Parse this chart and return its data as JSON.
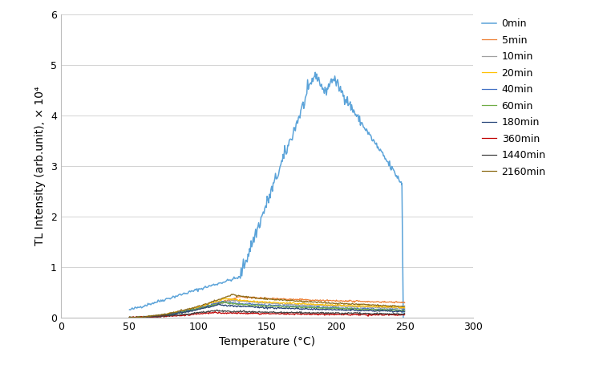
{
  "title": "",
  "xlabel": "Temperature (°C)",
  "ylabel": "TL Intensity (arb.unit), × 10⁴",
  "xlim": [
    0,
    300
  ],
  "ylim": [
    0,
    6
  ],
  "xticks": [
    0,
    50,
    100,
    150,
    200,
    250,
    300
  ],
  "yticks": [
    0,
    1,
    2,
    3,
    4,
    5,
    6
  ],
  "series_0min": {
    "label": "0min",
    "color": "#5BA3D9",
    "linewidth": 1.1
  },
  "minor_series": [
    {
      "label": "5min",
      "color": "#ED7D31",
      "peak_temp": 130,
      "peak_val": 0.42,
      "end_val": 0.3,
      "linewidth": 0.9
    },
    {
      "label": "10min",
      "color": "#A0A0A0",
      "peak_temp": 125,
      "peak_val": 0.35,
      "end_val": 0.18,
      "linewidth": 0.9
    },
    {
      "label": "20min",
      "color": "#FFC000",
      "peak_temp": 120,
      "peak_val": 0.38,
      "end_val": 0.2,
      "linewidth": 0.9
    },
    {
      "label": "40min",
      "color": "#4472C4",
      "peak_temp": 118,
      "peak_val": 0.32,
      "end_val": 0.15,
      "linewidth": 0.9
    },
    {
      "label": "60min",
      "color": "#70AD47",
      "peak_temp": 118,
      "peak_val": 0.3,
      "end_val": 0.14,
      "linewidth": 0.9
    },
    {
      "label": "180min",
      "color": "#264478",
      "peak_temp": 115,
      "peak_val": 0.26,
      "end_val": 0.12,
      "linewidth": 0.9
    },
    {
      "label": "360min",
      "color": "#C00000",
      "peak_temp": 110,
      "peak_val": 0.1,
      "end_val": 0.05,
      "linewidth": 0.9
    },
    {
      "label": "1440min",
      "color": "#404040",
      "peak_temp": 112,
      "peak_val": 0.14,
      "end_val": 0.07,
      "linewidth": 0.9
    },
    {
      "label": "2160min",
      "color": "#8B6914",
      "peak_temp": 125,
      "peak_val": 0.46,
      "end_val": 0.22,
      "linewidth": 0.9
    }
  ],
  "legend_fontsize": 9,
  "axis_fontsize": 10,
  "tick_fontsize": 9,
  "background_color": "#FFFFFF",
  "grid_color": "#CCCCCC"
}
